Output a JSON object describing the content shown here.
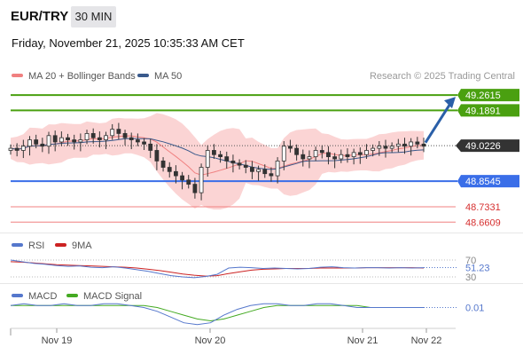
{
  "header": {
    "pair": "EUR/TRY",
    "timeframe": "30 MIN",
    "datetime": "Friday, November 21, 2025 10:35:33 AM CET"
  },
  "legend": {
    "ma20": "MA 20 + Bollinger Bands",
    "ma50": "MA 50",
    "credit": "Research © 2025 Trading Central",
    "rsi": "RSI",
    "rsi_ma": "9MA",
    "macd": "MACD",
    "macd_signal": "MACD Signal"
  },
  "colors": {
    "ma20": "#f08080",
    "ma50": "#3a5a8c",
    "bollinger_fill": "#f9c6c6",
    "resistance": "#4aa010",
    "pivot": "#3a6ee8",
    "support": "#f08080",
    "candle": "#333333",
    "arrow": "#2a5fa8",
    "rsi": "#5577cc",
    "rsi_ma": "#cc2222",
    "macd": "#5577cc",
    "macd_signal": "#44aa22"
  },
  "chart_data": [
    {
      "type": "candlestick",
      "title": "EUR/TRY 30 MIN",
      "x_ticks": [
        "Nov 19",
        "Nov 20",
        "Nov 21",
        "Nov 22"
      ],
      "current_price": "49.0226",
      "levels": [
        {
          "value": "49.2615",
          "kind": "resistance"
        },
        {
          "value": "49.1891",
          "kind": "resistance"
        },
        {
          "value": "49.0226",
          "kind": "current"
        },
        {
          "value": "48.8545",
          "kind": "pivot"
        },
        {
          "value": "48.7331",
          "kind": "support"
        },
        {
          "value": "48.6609",
          "kind": "support"
        }
      ],
      "close": [
        49.01,
        49.0,
        49.02,
        49.05,
        49.03,
        49.02,
        49.07,
        49.04,
        49.06,
        49.05,
        49.04,
        49.05,
        49.08,
        49.06,
        49.05,
        49.07,
        49.1,
        49.08,
        49.06,
        49.05,
        49.04,
        49.03,
        49.0,
        48.95,
        48.92,
        48.9,
        48.88,
        48.86,
        48.84,
        48.8,
        48.92,
        49.0,
        48.98,
        48.97,
        48.95,
        48.94,
        48.93,
        48.92,
        48.9,
        48.91,
        48.89,
        48.88,
        48.95,
        49.02,
        49.01,
        48.98,
        48.96,
        48.97,
        49.0,
        48.99,
        48.97,
        48.96,
        48.98,
        48.97,
        48.99,
        48.98,
        49.0,
        49.01,
        49.02,
        49.01,
        49.02,
        49.03,
        49.02,
        49.04,
        49.03,
        49.02
      ],
      "range": [
        48.62,
        49.3
      ]
    },
    {
      "type": "line",
      "title": "RSI",
      "series": [
        {
          "name": "RSI",
          "values": [
            70,
            66,
            62,
            60,
            57,
            55,
            56,
            53,
            52,
            54,
            51,
            47,
            43,
            38,
            33,
            30,
            28,
            31,
            36,
            51,
            53,
            52,
            50,
            51,
            50,
            49,
            50,
            53,
            54,
            52,
            51,
            52,
            52,
            51,
            52,
            51,
            52
          ]
        },
        {
          "name": "9MA",
          "values": [
            66,
            65,
            63,
            61,
            59,
            58,
            57,
            56,
            55,
            54,
            53,
            51,
            48,
            45,
            41,
            37,
            34,
            32,
            33,
            38,
            42,
            46,
            48,
            49,
            50,
            50,
            50,
            51,
            51,
            51,
            51,
            52,
            52,
            52,
            52,
            52,
            51
          ]
        }
      ],
      "y_ticks": [
        "70",
        "30"
      ],
      "last_value": "51.23"
    },
    {
      "type": "line",
      "title": "MACD",
      "series": [
        {
          "name": "MACD",
          "values": [
            0.02,
            0.03,
            0.02,
            0.02,
            0.03,
            0.02,
            0.02,
            0.03,
            0.03,
            0.02,
            0.01,
            -0.01,
            -0.04,
            -0.07,
            -0.08,
            -0.07,
            -0.03,
            0.0,
            0.02,
            0.03,
            0.03,
            0.02,
            0.02,
            0.03,
            0.03,
            0.02,
            0.01,
            0.01,
            0.01,
            0.01,
            0.01,
            0.01
          ]
        },
        {
          "name": "MACD Signal",
          "values": [
            0.02,
            0.02,
            0.02,
            0.02,
            0.02,
            0.02,
            0.02,
            0.02,
            0.02,
            0.02,
            0.02,
            0.01,
            -0.01,
            -0.03,
            -0.05,
            -0.06,
            -0.05,
            -0.03,
            -0.01,
            0.01,
            0.02,
            0.02,
            0.02,
            0.02,
            0.02,
            0.02,
            0.02,
            0.01,
            0.01,
            0.01,
            0.01,
            0.01
          ]
        }
      ],
      "last_value": "0.01"
    }
  ]
}
